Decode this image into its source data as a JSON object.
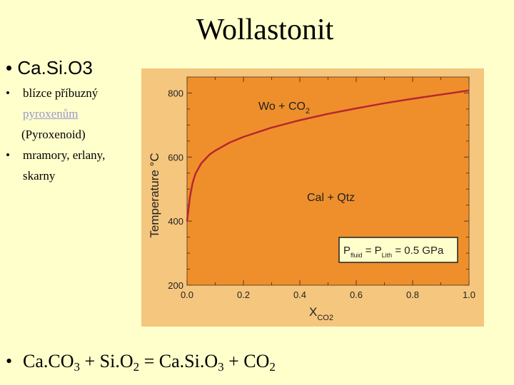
{
  "slide": {
    "title": "Wollastonit",
    "formula_bullet": "• Ca.Si.O3",
    "bullets": [
      {
        "b": "•",
        "text": "blízce příbuzný"
      },
      {
        "link": "pyroxenům"
      },
      {
        "text": "(Pyroxenoid)"
      },
      {
        "b": "•",
        "text": "mramory, erlany,"
      },
      {
        "text": "skarny"
      }
    ],
    "equation": {
      "bullet": "•",
      "p1": "Ca.CO",
      "s1": "3",
      "p2": " + Si.O",
      "s2": "2",
      "p3": "  =  Ca.Si.O",
      "s3": "3",
      "p4": " + CO",
      "s4": "2"
    }
  },
  "colors": {
    "background": "#FFFFCC",
    "chart_frame": "#F5C67E",
    "plot": "#EE8F2C",
    "curve": "#B8262E"
  },
  "chart_data": {
    "type": "line",
    "x": [
      0.0,
      0.01,
      0.02,
      0.03,
      0.05,
      0.08,
      0.1,
      0.15,
      0.2,
      0.3,
      0.4,
      0.5,
      0.6,
      0.7,
      0.8,
      0.9,
      1.0
    ],
    "series": [
      {
        "values": [
          400,
          475,
          520,
          548,
          580,
          608,
          620,
          645,
          663,
          692,
          715,
          735,
          752,
          768,
          782,
          795,
          808
        ]
      }
    ],
    "xlabel": "X",
    "xlabel_sub": "CO2",
    "ylabel": "Temperature °C",
    "xlim": [
      0.0,
      1.0
    ],
    "ylim": [
      200,
      850
    ],
    "xticks": [
      "0.0",
      "0.2",
      "0.4",
      "0.6",
      "0.8",
      "1.0"
    ],
    "yticks": [
      "200",
      "400",
      "600",
      "800"
    ],
    "grid": false,
    "annotations": {
      "upper": "Wo + CO",
      "upper_sub": "2",
      "lower": "Cal + Qtz",
      "box_p": "P",
      "box_fluid": "fluid",
      "box_eq": " = P",
      "box_lith": "Lith",
      "box_val": " = 0.5 GPa"
    }
  }
}
